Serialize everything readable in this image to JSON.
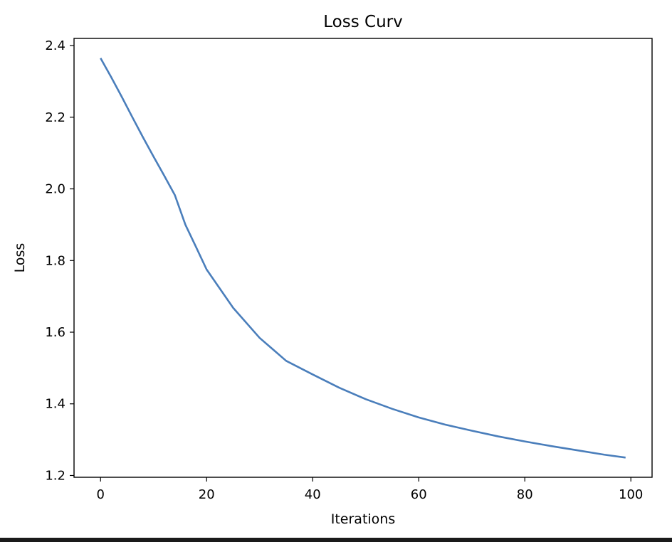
{
  "chart_data": {
    "type": "line",
    "title": "Loss Curv",
    "xlabel": "Iterations",
    "ylabel": "Loss",
    "xlim": [
      -5,
      104
    ],
    "ylim": [
      1.195,
      2.42
    ],
    "grid": false,
    "xticks": [
      0,
      20,
      40,
      60,
      80,
      100
    ],
    "xtick_labels": [
      "0",
      "20",
      "40",
      "60",
      "80",
      "100"
    ],
    "yticks": [
      1.2,
      1.4,
      1.6,
      1.8,
      2.0,
      2.2,
      2.4
    ],
    "ytick_labels": [
      "1.2",
      "1.4",
      "1.6",
      "1.8",
      "2.0",
      "2.2",
      "2.4"
    ],
    "series": [
      {
        "color": "#4a7ebb",
        "x": [
          0,
          2,
          4,
          6,
          8,
          10,
          12,
          14,
          16,
          18,
          20,
          25,
          30,
          35,
          40,
          45,
          50,
          55,
          60,
          65,
          70,
          75,
          80,
          85,
          90,
          95,
          99
        ],
        "y": [
          2.365,
          2.312,
          2.257,
          2.2,
          2.144,
          2.09,
          2.037,
          1.983,
          1.9,
          1.838,
          1.775,
          1.668,
          1.584,
          1.52,
          1.482,
          1.445,
          1.413,
          1.386,
          1.362,
          1.342,
          1.325,
          1.309,
          1.295,
          1.282,
          1.27,
          1.258,
          1.25
        ]
      }
    ]
  }
}
